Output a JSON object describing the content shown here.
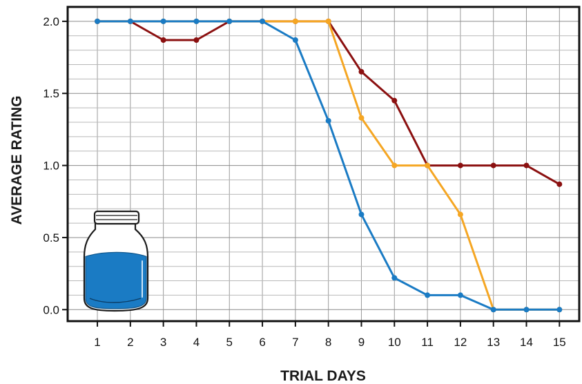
{
  "chart_data": {
    "type": "line",
    "title": "",
    "xlabel": "TRIAL DAYS",
    "ylabel": "AVERAGE RATING",
    "x": [
      1,
      2,
      3,
      4,
      5,
      6,
      7,
      8,
      9,
      10,
      11,
      12,
      13,
      14,
      15
    ],
    "x_tick_labels": [
      "1",
      "2",
      "3",
      "4",
      "5",
      "6",
      "7",
      "8",
      "9",
      "10",
      "11",
      "12",
      "13",
      "14",
      "15"
    ],
    "y_tick_labels": [
      "0.0",
      "0.5",
      "1.0",
      "1.5",
      "2.0"
    ],
    "y_ticks": [
      0,
      0.5,
      1.0,
      1.5,
      2.0
    ],
    "xlim": [
      0.1,
      15.6
    ],
    "ylim": [
      -0.08,
      2.1
    ],
    "grid": true,
    "legend": "none",
    "series": [
      {
        "color": "#8b1010",
        "values": [
          2.0,
          2.0,
          1.87,
          1.87,
          2.0,
          2.0,
          2.0,
          2.0,
          1.65,
          1.45,
          1.0,
          1.0,
          1.0,
          1.0,
          0.87
        ]
      },
      {
        "color": "#f5a623",
        "values": [
          2.0,
          2.0,
          2.0,
          2.0,
          2.0,
          2.0,
          2.0,
          2.0,
          1.33,
          1.0,
          1.0,
          0.66,
          0.0,
          0.0,
          0.0
        ]
      },
      {
        "color": "#1a7bc4",
        "values": [
          2.0,
          2.0,
          2.0,
          2.0,
          2.0,
          2.0,
          1.87,
          1.31,
          0.66,
          0.22,
          0.1,
          0.1,
          0.0,
          0.0,
          0.0
        ]
      }
    ],
    "annotation_icon": "water-jar-icon",
    "jar_fill_level": 0.62
  }
}
